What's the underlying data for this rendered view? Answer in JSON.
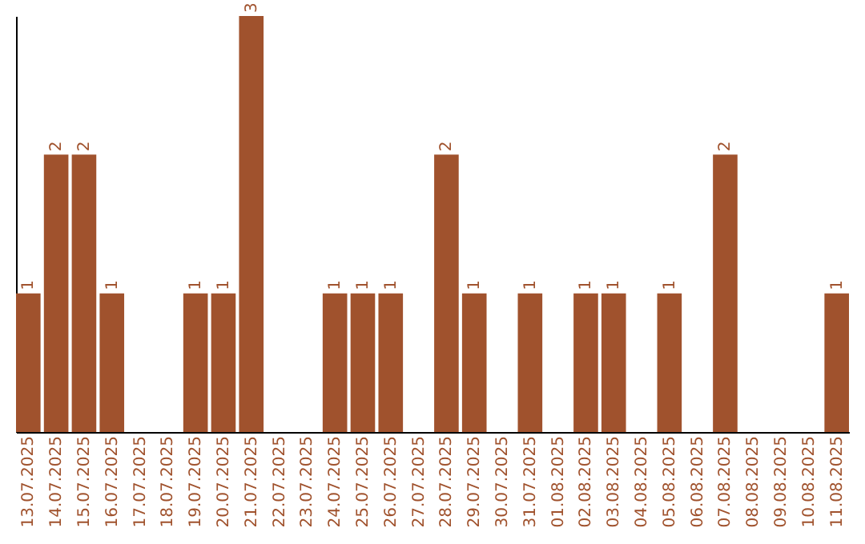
{
  "chart_data": {
    "type": "bar",
    "categories": [
      "13.07.2025",
      "14.07.2025",
      "15.07.2025",
      "16.07.2025",
      "17.07.2025",
      "18.07.2025",
      "19.07.2025",
      "20.07.2025",
      "21.07.2025",
      "22.07.2025",
      "23.07.2025",
      "24.07.2025",
      "25.07.2025",
      "26.07.2025",
      "27.07.2025",
      "28.07.2025",
      "29.07.2025",
      "30.07.2025",
      "31.07.2025",
      "01.08.2025",
      "02.08.2025",
      "03.08.2025",
      "04.08.2025",
      "05.08.2025",
      "06.08.2025",
      "07.08.2025",
      "08.08.2025",
      "09.08.2025",
      "10.08.2025",
      "11.08.2025"
    ],
    "values": [
      1,
      2,
      2,
      1,
      0,
      0,
      1,
      1,
      3,
      0,
      0,
      1,
      1,
      1,
      0,
      2,
      1,
      0,
      1,
      0,
      1,
      1,
      0,
      1,
      0,
      2,
      0,
      0,
      0,
      1
    ],
    "value_labels": [
      "1",
      "2",
      "2",
      "1",
      null,
      null,
      "1",
      "1",
      "3",
      null,
      null,
      "1",
      "1",
      "1",
      null,
      "2",
      "1",
      null,
      "1",
      null,
      "1",
      "1",
      null,
      "1",
      null,
      "2",
      null,
      null,
      null,
      "1"
    ],
    "color": "#a0522d",
    "ylim": [
      0,
      3
    ],
    "tick_labels": "x",
    "grid": false
  }
}
